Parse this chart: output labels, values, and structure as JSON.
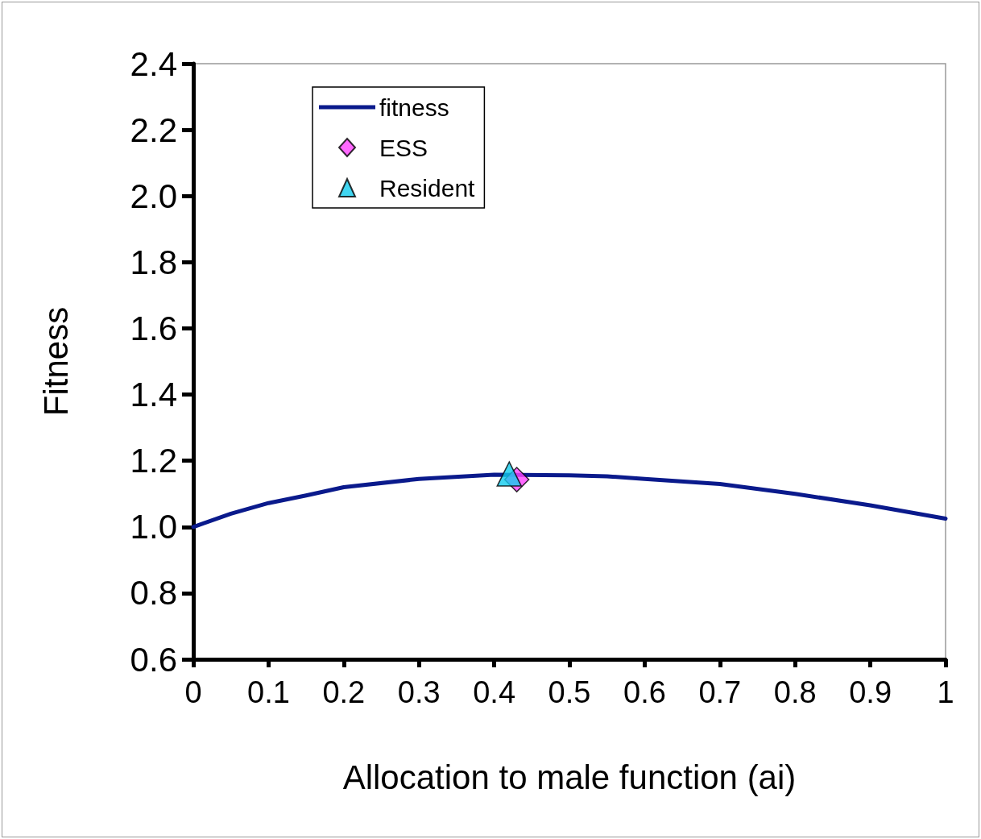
{
  "chart_data": {
    "type": "line",
    "xlabel": "Allocation to male function (ai)",
    "ylabel": "Fitness",
    "xlim": [
      0,
      1
    ],
    "xticks": [
      0,
      0.1,
      0.2,
      0.3,
      0.4,
      0.5,
      0.6,
      0.7,
      0.8,
      0.9,
      1
    ],
    "ylim": [
      0.6,
      2.4
    ],
    "yticks": [
      0.6,
      0.8,
      {
        "value": 1,
        "label": "1.0"
      },
      1.2,
      1.4,
      1.6,
      1.8,
      {
        "value": 2,
        "label": "2.0"
      },
      2.2,
      2.4
    ],
    "grid": false,
    "legend": "top left",
    "series": [
      {
        "name": "fitness",
        "marker": "none",
        "line_style": "solid",
        "color": "#0a1a8c",
        "x": [
          0,
          0.05,
          0.1,
          0.15,
          0.2,
          0.3,
          0.4,
          0.5,
          0.55,
          0.6,
          0.7,
          0.8,
          0.9,
          1
        ],
        "values": [
          1.0,
          1.04,
          1.072,
          1.095,
          1.12,
          1.145,
          1.158,
          1.156,
          1.153,
          1.145,
          1.13,
          1.1,
          1.065,
          1.025
        ]
      },
      {
        "name": "ESS",
        "type": "scatter",
        "marker": "diamond",
        "color": "#ff44ff",
        "x": [
          0.43
        ],
        "values": [
          1.143
        ]
      },
      {
        "name": "Resident",
        "type": "scatter",
        "marker": "triangle",
        "color": "#11ccee",
        "x": [
          0.42
        ],
        "values": [
          1.16
        ]
      }
    ]
  }
}
